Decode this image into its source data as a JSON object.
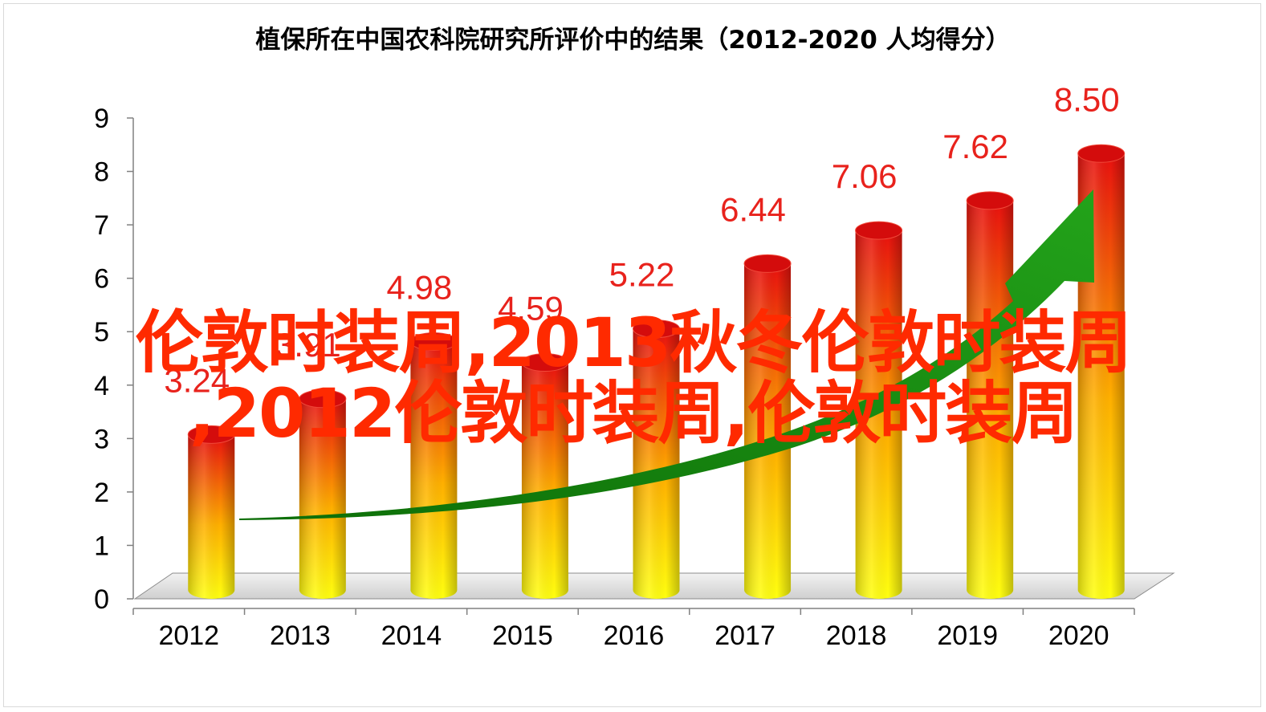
{
  "chart_data": {
    "type": "bar",
    "title": "植保所在中国农科院研究所评价中的结果（2012-2020 人均得分）",
    "categories": [
      "2012",
      "2013",
      "2014",
      "2015",
      "2016",
      "2017",
      "2018",
      "2019",
      "2020"
    ],
    "values": [
      3.24,
      3.91,
      4.98,
      4.59,
      5.22,
      6.44,
      7.06,
      7.62,
      8.5
    ],
    "data_labels": [
      "3.24",
      "3.91",
      "4.98",
      "4.59",
      "5.22",
      "6.44",
      "7.06",
      "7.62",
      "8.50"
    ],
    "ylim": [
      0,
      9
    ],
    "yticks": [
      "0",
      "1",
      "2",
      "3",
      "4",
      "5",
      "6",
      "7",
      "8",
      "9"
    ],
    "grid": false,
    "legend": "none",
    "bar_style": "3d-cylinder",
    "colors": {
      "bar_top": "#e8100f",
      "bar_mid": "#ff8c00",
      "bar_bottom": "#ffff00",
      "label": "#e8221c",
      "arrow": "#1a8a10"
    }
  },
  "overlay": {
    "line1": "伦敦时装周,2013秋冬伦敦时装周",
    "line2": ",2012伦敦时装周,伦敦时装周"
  }
}
